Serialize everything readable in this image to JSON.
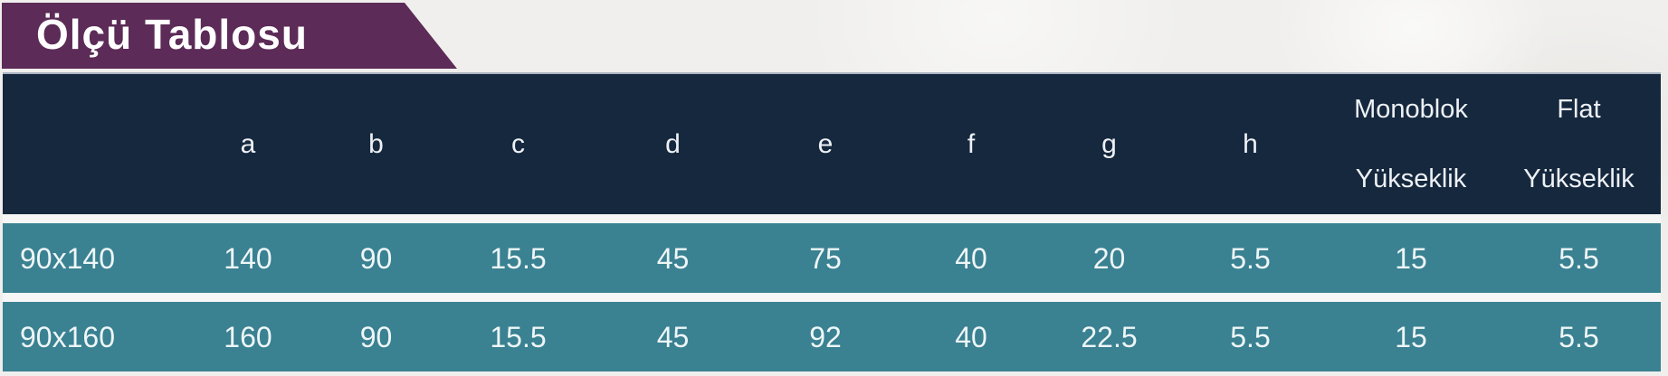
{
  "title": "Ölçü Tablosu",
  "colors": {
    "banner_purple": "#5c2b57",
    "header_navy": "#15283e",
    "row_teal": "#3a8192",
    "page_background": "#f0efed",
    "text_light": "#ffffff"
  },
  "table": {
    "header": {
      "corner": "",
      "letters": [
        "a",
        "b",
        "c",
        "d",
        "e",
        "f",
        "g",
        "h"
      ],
      "monoblok": {
        "top": "Monoblok",
        "bottom": "Yükseklik"
      },
      "flat": {
        "top": "Flat",
        "bottom": "Yükseklik"
      }
    },
    "rows": [
      {
        "label": "90x140",
        "values": [
          "140",
          "90",
          "15.5",
          "45",
          "75",
          "40",
          "20",
          "5.5",
          "15",
          "5.5"
        ]
      },
      {
        "label": "90x160",
        "values": [
          "160",
          "90",
          "15.5",
          "45",
          "92",
          "40",
          "22.5",
          "5.5",
          "15",
          "5.5"
        ]
      }
    ]
  }
}
